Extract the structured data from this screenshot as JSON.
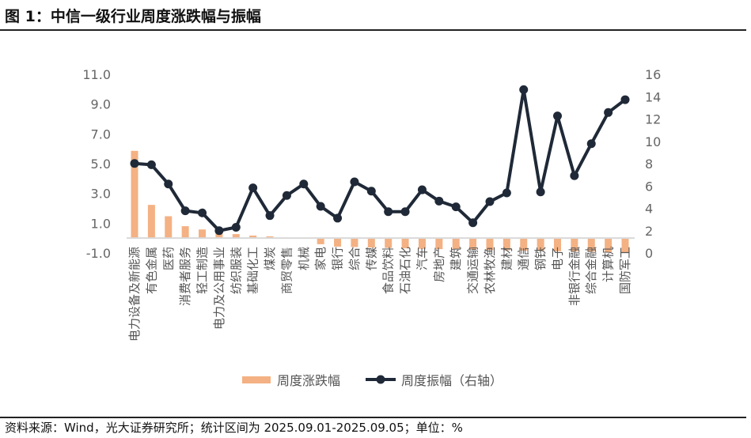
{
  "title": "图 1：中信一级行业周度涨跌幅与振幅",
  "source": "资料来源：Wind，光大证券研究所；统计区间为 2025.09.01-2025.09.05；单位：%",
  "chart_data": {
    "type": "bar+line",
    "categories": [
      "电力设备及新能源",
      "有色金属",
      "医药",
      "消费者服务",
      "轻工制造",
      "电力及公用事业",
      "纺织服装",
      "基础化工",
      "煤炭",
      "商贸零售",
      "机械",
      "家电",
      "银行",
      "综合",
      "传媒",
      "食品饮料",
      "石油石化",
      "汽车",
      "房地产",
      "建筑",
      "交通运输",
      "农林牧渔",
      "建材",
      "通信",
      "钢铁",
      "电子",
      "非银行金融",
      "综合金融",
      "计算机",
      "国防军工"
    ],
    "series": [
      {
        "name": "周度涨跌幅",
        "type": "bar",
        "axis": "left",
        "color": "#F4B183",
        "values": [
          5.86,
          2.23,
          1.47,
          0.8,
          0.58,
          0.4,
          0.27,
          0.17,
          0.12,
          0.04,
          0.01,
          -0.41,
          -0.57,
          -0.6,
          -0.63,
          -0.66,
          -0.69,
          -0.72,
          -0.74,
          -0.76,
          -0.78,
          -0.8,
          -0.82,
          -0.84,
          -0.86,
          -0.88,
          -0.9,
          -0.92,
          -0.95,
          -1.0
        ]
      },
      {
        "name": "周度振幅（右轴）",
        "type": "line",
        "axis": "right",
        "color": "#1F2937",
        "values": [
          8.02,
          7.9,
          6.18,
          3.78,
          3.59,
          2.0,
          2.3,
          5.83,
          3.35,
          5.15,
          6.18,
          4.18,
          3.12,
          6.37,
          5.54,
          3.7,
          3.7,
          5.66,
          4.65,
          4.13,
          2.71,
          4.6,
          5.38,
          14.63,
          5.47,
          12.27,
          6.92,
          9.79,
          12.58,
          13.73
        ]
      }
    ],
    "y_left": {
      "min": -1,
      "max": 11,
      "ticks": [
        "11.0",
        "9.0",
        "7.0",
        "5.0",
        "3.0",
        "1.0",
        "-1.0"
      ]
    },
    "y_right": {
      "min": 0,
      "max": 16,
      "ticks": [
        "16",
        "14",
        "12",
        "10",
        "8",
        "6",
        "4",
        "2",
        "0"
      ]
    },
    "legend_position": "bottom",
    "grid": false
  }
}
